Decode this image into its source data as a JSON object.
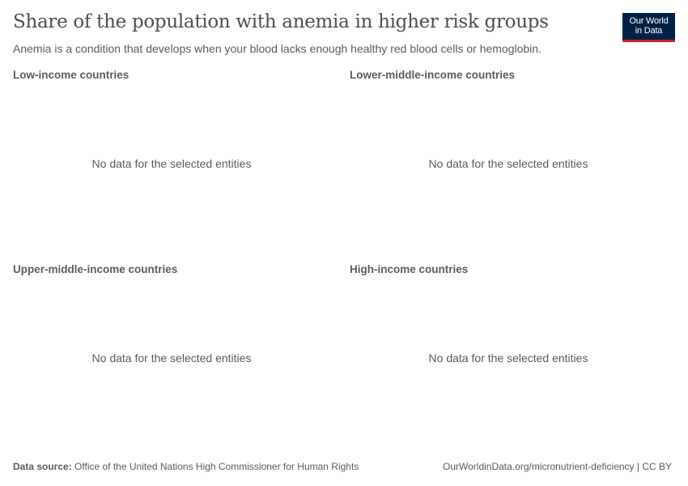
{
  "header": {
    "title": "Share of the population with anemia in higher risk groups",
    "subtitle": "Anemia is a condition that develops when your blood lacks enough healthy red blood cells or hemoglobin.",
    "logo_line1": "Our World",
    "logo_line2": "in Data"
  },
  "chart_data": [
    {
      "type": "line",
      "title": "Low-income countries",
      "series": [],
      "message": "No data for the selected entities"
    },
    {
      "type": "line",
      "title": "Lower-middle-income countries",
      "series": [],
      "message": "No data for the selected entities"
    },
    {
      "type": "line",
      "title": "Upper-middle-income countries",
      "series": [],
      "message": "No data for the selected entities"
    },
    {
      "type": "line",
      "title": "High-income countries",
      "series": [],
      "message": "No data for the selected entities"
    }
  ],
  "footer": {
    "source_label": "Data source:",
    "source_text": "Office of the United Nations High Commissioner for Human Rights",
    "url_text": "OurWorldinData.org/micronutrient-deficiency | CC BY"
  },
  "colors": {
    "logo_background": "#002147",
    "logo_accent": "#ce261e",
    "text": "#5b5b5b"
  }
}
